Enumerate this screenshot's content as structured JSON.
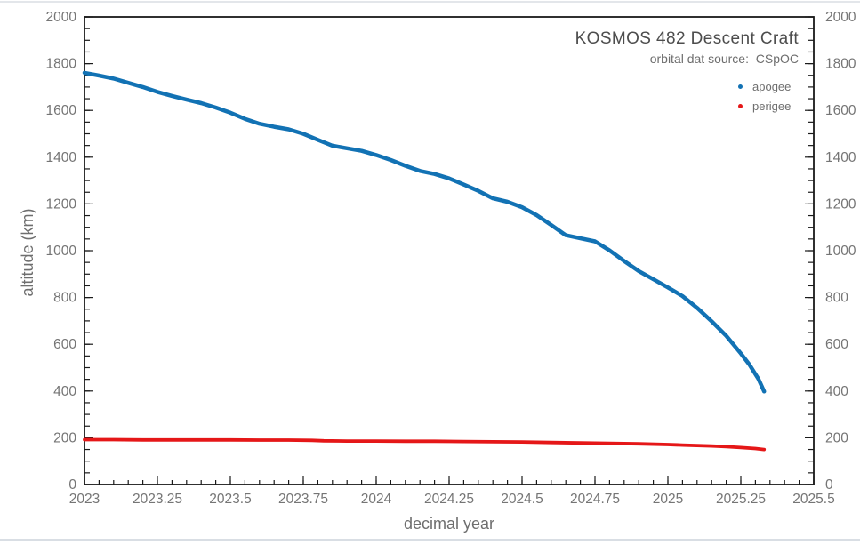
{
  "page": {
    "background": "#ffffff",
    "top_border_color": "#e3e6ea",
    "bottom_border_color": "#d9dee4"
  },
  "chart_data": {
    "type": "line",
    "title": "KOSMOS 482 Descent Craft",
    "source_note": "orbital dat source:  CSpOC",
    "xlabel": "decimal year",
    "ylabel": "altitude (km)",
    "xlim": [
      2023,
      2025.5
    ],
    "ylim": [
      0,
      2000
    ],
    "grid": false,
    "legend_position": "upper right inside, no frame",
    "axis_color": "#1a1a1a",
    "tick_label_color": "#757575",
    "title_color": "#4d4d4d",
    "x_major_ticks": [
      2023,
      2023.25,
      2023.5,
      2023.75,
      2024,
      2024.25,
      2024.5,
      2024.75,
      2025,
      2025.25,
      2025.5
    ],
    "x_major_labels": [
      "2023",
      "2023.25",
      "2023.5",
      "2023.75",
      "2024",
      "2024.25",
      "2024.5",
      "2024.75",
      "2025",
      "2025.25",
      "2025.5"
    ],
    "x_minor_step": 0.05,
    "y_major_ticks": [
      0,
      200,
      400,
      600,
      800,
      1000,
      1200,
      1400,
      1600,
      1800,
      2000
    ],
    "y_major_labels": [
      "0",
      "200",
      "400",
      "600",
      "800",
      "1000",
      "1200",
      "1400",
      "1600",
      "1800",
      "2000"
    ],
    "y_minor_step": 50,
    "series": [
      {
        "name": "apogee",
        "color": "#1272b4",
        "points": [
          [
            2023.0,
            1761
          ],
          [
            2023.05,
            1749
          ],
          [
            2023.1,
            1736
          ],
          [
            2023.15,
            1718
          ],
          [
            2023.2,
            1700
          ],
          [
            2023.25,
            1679
          ],
          [
            2023.3,
            1662
          ],
          [
            2023.35,
            1646
          ],
          [
            2023.4,
            1631
          ],
          [
            2023.45,
            1612
          ],
          [
            2023.5,
            1590
          ],
          [
            2023.55,
            1564
          ],
          [
            2023.6,
            1543
          ],
          [
            2023.65,
            1530
          ],
          [
            2023.7,
            1519
          ],
          [
            2023.75,
            1500
          ],
          [
            2023.8,
            1474
          ],
          [
            2023.85,
            1449
          ],
          [
            2023.9,
            1438
          ],
          [
            2023.95,
            1427
          ],
          [
            2024.0,
            1409
          ],
          [
            2024.05,
            1388
          ],
          [
            2024.1,
            1363
          ],
          [
            2024.15,
            1341
          ],
          [
            2024.2,
            1328
          ],
          [
            2024.25,
            1309
          ],
          [
            2024.3,
            1283
          ],
          [
            2024.35,
            1256
          ],
          [
            2024.4,
            1224
          ],
          [
            2024.45,
            1209
          ],
          [
            2024.5,
            1186
          ],
          [
            2024.55,
            1152
          ],
          [
            2024.6,
            1110
          ],
          [
            2024.65,
            1066
          ],
          [
            2024.7,
            1053
          ],
          [
            2024.75,
            1040
          ],
          [
            2024.8,
            1001
          ],
          [
            2024.85,
            956
          ],
          [
            2024.9,
            913
          ],
          [
            2024.95,
            878
          ],
          [
            2025.0,
            843
          ],
          [
            2025.05,
            806
          ],
          [
            2025.1,
            756
          ],
          [
            2025.15,
            698
          ],
          [
            2025.2,
            636
          ],
          [
            2025.25,
            561
          ],
          [
            2025.28,
            512
          ],
          [
            2025.31,
            452
          ],
          [
            2025.33,
            398
          ]
        ]
      },
      {
        "name": "perigee",
        "color": "#e51718",
        "points": [
          [
            2023.0,
            192
          ],
          [
            2023.1,
            192
          ],
          [
            2023.2,
            191
          ],
          [
            2023.3,
            191
          ],
          [
            2023.4,
            191
          ],
          [
            2023.5,
            191
          ],
          [
            2023.6,
            190
          ],
          [
            2023.7,
            190
          ],
          [
            2023.78,
            189
          ],
          [
            2023.82,
            187
          ],
          [
            2023.9,
            186
          ],
          [
            2024.0,
            186
          ],
          [
            2024.1,
            185
          ],
          [
            2024.2,
            185
          ],
          [
            2024.3,
            184
          ],
          [
            2024.4,
            183
          ],
          [
            2024.5,
            182
          ],
          [
            2024.6,
            180
          ],
          [
            2024.7,
            178
          ],
          [
            2024.8,
            176
          ],
          [
            2024.9,
            174
          ],
          [
            2025.0,
            171
          ],
          [
            2025.05,
            169
          ],
          [
            2025.1,
            167
          ],
          [
            2025.15,
            165
          ],
          [
            2025.2,
            162
          ],
          [
            2025.25,
            158
          ],
          [
            2025.3,
            154
          ],
          [
            2025.33,
            150
          ]
        ]
      }
    ]
  }
}
